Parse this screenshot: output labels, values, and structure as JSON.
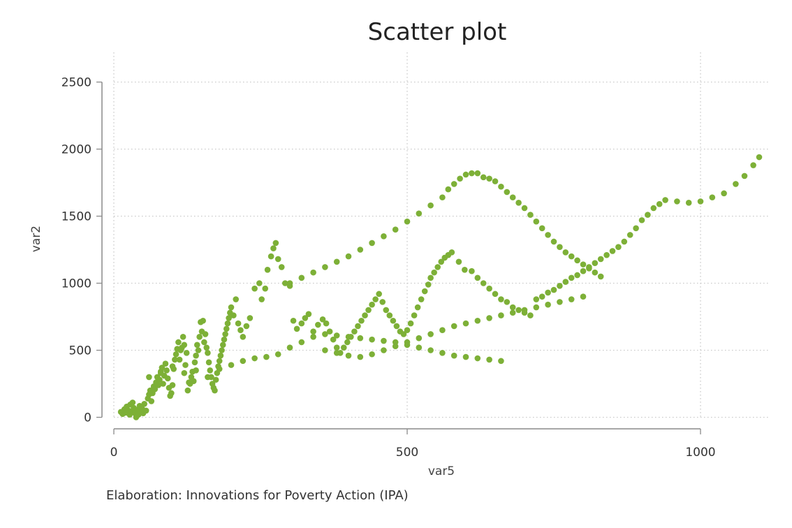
{
  "chart_data": {
    "type": "scatter",
    "title": "Scatter plot",
    "xlabel": "var5",
    "ylabel": "var2",
    "xlim": [
      0,
      1120
    ],
    "ylim": [
      0,
      2500
    ],
    "xticks": [
      0,
      500,
      1000
    ],
    "yticks": [
      0,
      500,
      1000,
      1500,
      2000,
      2500
    ],
    "grid": true,
    "color": "#7db037",
    "series": [
      {
        "name": "var2",
        "points": [
          [
            12,
            40
          ],
          [
            15,
            25
          ],
          [
            18,
            60
          ],
          [
            20,
            35
          ],
          [
            22,
            80
          ],
          [
            25,
            50
          ],
          [
            27,
            20
          ],
          [
            28,
            95
          ],
          [
            30,
            45
          ],
          [
            32,
            110
          ],
          [
            34,
            70
          ],
          [
            36,
            30
          ],
          [
            38,
            0
          ],
          [
            40,
            55
          ],
          [
            42,
            20
          ],
          [
            44,
            85
          ],
          [
            46,
            40
          ],
          [
            48,
            65
          ],
          [
            50,
            30
          ],
          [
            52,
            100
          ],
          [
            55,
            50
          ],
          [
            58,
            140
          ],
          [
            60,
            170
          ],
          [
            62,
            200
          ],
          [
            64,
            120
          ],
          [
            66,
            180
          ],
          [
            68,
            230
          ],
          [
            70,
            210
          ],
          [
            72,
            260
          ],
          [
            74,
            300
          ],
          [
            76,
            240
          ],
          [
            78,
            280
          ],
          [
            80,
            330
          ],
          [
            82,
            370
          ],
          [
            84,
            250
          ],
          [
            86,
            310
          ],
          [
            88,
            400
          ],
          [
            90,
            350
          ],
          [
            92,
            290
          ],
          [
            94,
            220
          ],
          [
            96,
            160
          ],
          [
            98,
            180
          ],
          [
            100,
            240
          ],
          [
            102,
            360
          ],
          [
            104,
            430
          ],
          [
            106,
            470
          ],
          [
            108,
            510
          ],
          [
            110,
            560
          ],
          [
            112,
            430
          ],
          [
            114,
            500
          ],
          [
            116,
            520
          ],
          [
            118,
            600
          ],
          [
            120,
            540
          ],
          [
            122,
            390
          ],
          [
            124,
            480
          ],
          [
            126,
            200
          ],
          [
            128,
            260
          ],
          [
            130,
            250
          ],
          [
            132,
            300
          ],
          [
            134,
            340
          ],
          [
            136,
            270
          ],
          [
            138,
            410
          ],
          [
            140,
            460
          ],
          [
            142,
            540
          ],
          [
            144,
            500
          ],
          [
            146,
            600
          ],
          [
            148,
            710
          ],
          [
            150,
            640
          ],
          [
            152,
            720
          ],
          [
            154,
            560
          ],
          [
            156,
            620
          ],
          [
            158,
            520
          ],
          [
            160,
            480
          ],
          [
            162,
            410
          ],
          [
            164,
            350
          ],
          [
            166,
            300
          ],
          [
            168,
            250
          ],
          [
            170,
            220
          ],
          [
            172,
            200
          ],
          [
            174,
            280
          ],
          [
            176,
            330
          ],
          [
            178,
            380
          ],
          [
            180,
            420
          ],
          [
            182,
            460
          ],
          [
            184,
            500
          ],
          [
            186,
            540
          ],
          [
            188,
            580
          ],
          [
            190,
            620
          ],
          [
            192,
            660
          ],
          [
            194,
            700
          ],
          [
            196,
            740
          ],
          [
            198,
            780
          ],
          [
            200,
            820
          ],
          [
            204,
            760
          ],
          [
            208,
            880
          ],
          [
            212,
            700
          ],
          [
            216,
            650
          ],
          [
            220,
            600
          ],
          [
            226,
            680
          ],
          [
            232,
            740
          ],
          [
            240,
            960
          ],
          [
            248,
            1000
          ],
          [
            252,
            880
          ],
          [
            258,
            960
          ],
          [
            262,
            1100
          ],
          [
            268,
            1200
          ],
          [
            272,
            1260
          ],
          [
            276,
            1300
          ],
          [
            280,
            1180
          ],
          [
            286,
            1120
          ],
          [
            292,
            1000
          ],
          [
            300,
            980
          ],
          [
            306,
            720
          ],
          [
            312,
            660
          ],
          [
            320,
            700
          ],
          [
            326,
            740
          ],
          [
            332,
            770
          ],
          [
            340,
            640
          ],
          [
            348,
            690
          ],
          [
            356,
            730
          ],
          [
            362,
            700
          ],
          [
            368,
            640
          ],
          [
            374,
            580
          ],
          [
            380,
            520
          ],
          [
            386,
            480
          ],
          [
            392,
            520
          ],
          [
            398,
            560
          ],
          [
            404,
            600
          ],
          [
            410,
            640
          ],
          [
            416,
            680
          ],
          [
            422,
            720
          ],
          [
            428,
            760
          ],
          [
            434,
            800
          ],
          [
            440,
            840
          ],
          [
            446,
            880
          ],
          [
            452,
            920
          ],
          [
            458,
            860
          ],
          [
            464,
            800
          ],
          [
            470,
            760
          ],
          [
            476,
            720
          ],
          [
            482,
            680
          ],
          [
            488,
            640
          ],
          [
            494,
            620
          ],
          [
            500,
            650
          ],
          [
            506,
            700
          ],
          [
            512,
            760
          ],
          [
            518,
            820
          ],
          [
            524,
            880
          ],
          [
            530,
            940
          ],
          [
            536,
            990
          ],
          [
            540,
            1040
          ],
          [
            546,
            1080
          ],
          [
            552,
            1120
          ],
          [
            558,
            1160
          ],
          [
            564,
            1190
          ],
          [
            570,
            1210
          ],
          [
            576,
            1230
          ],
          [
            588,
            1160
          ],
          [
            598,
            1100
          ],
          [
            610,
            1090
          ],
          [
            620,
            1040
          ],
          [
            630,
            1000
          ],
          [
            640,
            960
          ],
          [
            650,
            920
          ],
          [
            660,
            880
          ],
          [
            670,
            860
          ],
          [
            680,
            820
          ],
          [
            690,
            800
          ],
          [
            700,
            780
          ],
          [
            710,
            760
          ],
          [
            720,
            880
          ],
          [
            730,
            900
          ],
          [
            740,
            930
          ],
          [
            750,
            950
          ],
          [
            760,
            980
          ],
          [
            770,
            1010
          ],
          [
            780,
            1040
          ],
          [
            790,
            1060
          ],
          [
            800,
            1090
          ],
          [
            810,
            1120
          ],
          [
            820,
            1150
          ],
          [
            830,
            1180
          ],
          [
            840,
            1210
          ],
          [
            850,
            1240
          ],
          [
            860,
            1270
          ],
          [
            870,
            1310
          ],
          [
            880,
            1360
          ],
          [
            890,
            1410
          ],
          [
            900,
            1470
          ],
          [
            910,
            1510
          ],
          [
            920,
            1560
          ],
          [
            930,
            1590
          ],
          [
            940,
            1620
          ],
          [
            960,
            1610
          ],
          [
            980,
            1600
          ],
          [
            1000,
            1610
          ],
          [
            1020,
            1640
          ],
          [
            1040,
            1670
          ],
          [
            1060,
            1740
          ],
          [
            1075,
            1800
          ],
          [
            1090,
            1880
          ],
          [
            1100,
            1940
          ],
          [
            60,
            300
          ],
          [
            80,
            340
          ],
          [
            100,
            380
          ],
          [
            120,
            330
          ],
          [
            140,
            350
          ],
          [
            160,
            300
          ],
          [
            180,
            360
          ],
          [
            200,
            390
          ],
          [
            220,
            420
          ],
          [
            240,
            440
          ],
          [
            260,
            450
          ],
          [
            280,
            470
          ],
          [
            300,
            520
          ],
          [
            320,
            560
          ],
          [
            340,
            600
          ],
          [
            360,
            620
          ],
          [
            380,
            610
          ],
          [
            400,
            600
          ],
          [
            420,
            590
          ],
          [
            440,
            580
          ],
          [
            460,
            570
          ],
          [
            480,
            560
          ],
          [
            500,
            540
          ],
          [
            520,
            520
          ],
          [
            540,
            500
          ],
          [
            560,
            480
          ],
          [
            580,
            460
          ],
          [
            600,
            450
          ],
          [
            620,
            440
          ],
          [
            640,
            430
          ],
          [
            660,
            420
          ],
          [
            300,
            1000
          ],
          [
            320,
            1040
          ],
          [
            340,
            1080
          ],
          [
            360,
            1120
          ],
          [
            380,
            1160
          ],
          [
            400,
            1200
          ],
          [
            420,
            1250
          ],
          [
            440,
            1300
          ],
          [
            460,
            1350
          ],
          [
            480,
            1400
          ],
          [
            500,
            1460
          ],
          [
            520,
            1520
          ],
          [
            540,
            1580
          ],
          [
            560,
            1640
          ],
          [
            570,
            1700
          ],
          [
            580,
            1740
          ],
          [
            590,
            1780
          ],
          [
            600,
            1810
          ],
          [
            610,
            1820
          ],
          [
            620,
            1820
          ],
          [
            630,
            1790
          ],
          [
            640,
            1780
          ],
          [
            650,
            1760
          ],
          [
            660,
            1720
          ],
          [
            670,
            1680
          ],
          [
            680,
            1640
          ],
          [
            690,
            1600
          ],
          [
            700,
            1560
          ],
          [
            710,
            1510
          ],
          [
            720,
            1460
          ],
          [
            730,
            1410
          ],
          [
            740,
            1360
          ],
          [
            750,
            1310
          ],
          [
            760,
            1270
          ],
          [
            770,
            1230
          ],
          [
            780,
            1200
          ],
          [
            790,
            1170
          ],
          [
            800,
            1140
          ],
          [
            810,
            1110
          ],
          [
            820,
            1080
          ],
          [
            830,
            1050
          ],
          [
            360,
            500
          ],
          [
            380,
            480
          ],
          [
            400,
            460
          ],
          [
            420,
            450
          ],
          [
            440,
            470
          ],
          [
            460,
            500
          ],
          [
            480,
            530
          ],
          [
            500,
            560
          ],
          [
            520,
            590
          ],
          [
            540,
            620
          ],
          [
            560,
            650
          ],
          [
            580,
            680
          ],
          [
            600,
            700
          ],
          [
            620,
            720
          ],
          [
            640,
            740
          ],
          [
            660,
            760
          ],
          [
            680,
            780
          ],
          [
            700,
            800
          ],
          [
            720,
            820
          ],
          [
            740,
            840
          ],
          [
            760,
            860
          ],
          [
            780,
            880
          ],
          [
            800,
            900
          ]
        ]
      }
    ],
    "note": "Elaboration: Innovations for Poverty Action (IPA)"
  }
}
